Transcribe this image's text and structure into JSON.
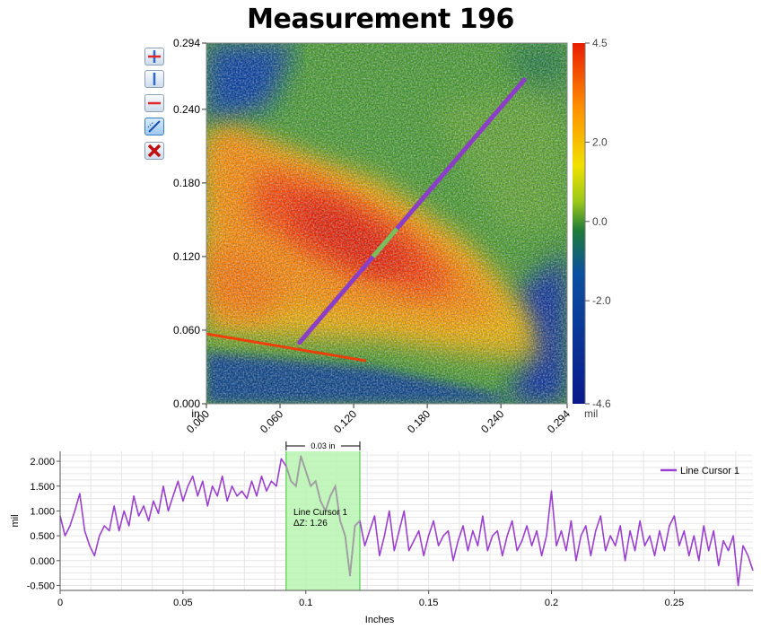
{
  "title": "Measurement 196",
  "toolbar": {
    "buttons": [
      {
        "name": "crosshair-cursor",
        "icon": "crosshair-icon",
        "active": false
      },
      {
        "name": "vertical-cursor",
        "icon": "vertical-line-icon",
        "active": false
      },
      {
        "name": "horizontal-cursor",
        "icon": "horizontal-line-icon",
        "active": false
      },
      {
        "name": "line-cursor",
        "icon": "diagonal-line-icon",
        "active": true
      },
      {
        "name": "delete-cursor",
        "icon": "red-x-icon",
        "active": false
      }
    ]
  },
  "chart_data": [
    {
      "type": "heatmap",
      "title": "Measurement 196",
      "axis_unit": "in",
      "x_ticks": [
        "0.000",
        "0.060",
        "0.120",
        "0.180",
        "0.240",
        "0.294"
      ],
      "y_ticks": [
        "0.294",
        "0.240",
        "0.180",
        "0.120",
        "0.060",
        "0.000"
      ],
      "xlim": [
        0,
        0.294
      ],
      "ylim": [
        0,
        0.294
      ],
      "colorbar": {
        "unit": "mil",
        "min": -4.6,
        "max": 4.5,
        "ticks": [
          "4.5",
          "2.0",
          "0.0",
          "-2.0",
          "-4.6"
        ],
        "tick_values": [
          4.5,
          2.0,
          0.0,
          -2.0,
          -4.6
        ],
        "colors": [
          "#0a1a8c",
          "#0c3fa0",
          "#1f7a3a",
          "#9ac81a",
          "#f0e000",
          "#ff9000",
          "#e81c00"
        ]
      },
      "line_cursor": {
        "start": [
          0.076,
          0.05
        ],
        "end": [
          0.259,
          0.264
        ],
        "color": "#8a3fc6",
        "highlight_color": "#7bbf5a"
      },
      "hot_band": {
        "from": [
          0.0,
          0.057
        ],
        "to": [
          0.13,
          0.035
        ]
      }
    },
    {
      "type": "line",
      "xlabel": "Inches",
      "ylabel": "mil",
      "xlim": [
        0,
        0.282
      ],
      "ylim": [
        -0.6,
        2.2
      ],
      "x_ticks": [
        "0",
        "0.05",
        "0.1",
        "0.15",
        "0.2",
        "0.25"
      ],
      "x_tick_values": [
        0,
        0.05,
        0.1,
        0.15,
        0.2,
        0.25
      ],
      "y_ticks": [
        "2.000",
        "1.500",
        "1.000",
        "0.500",
        "0.000",
        "-0.500"
      ],
      "y_tick_values": [
        2.0,
        1.5,
        1.0,
        0.5,
        0.0,
        -0.5
      ],
      "grid": true,
      "legend_position": "top-right",
      "series": [
        {
          "name": "Line Cursor 1",
          "color": "#9b3fd0",
          "highlight_color": "#a0a0a0",
          "x": [
            0,
            0.002,
            0.004,
            0.006,
            0.008,
            0.01,
            0.012,
            0.014,
            0.016,
            0.018,
            0.02,
            0.022,
            0.024,
            0.026,
            0.028,
            0.03,
            0.032,
            0.034,
            0.036,
            0.038,
            0.04,
            0.042,
            0.044,
            0.046,
            0.048,
            0.05,
            0.052,
            0.054,
            0.056,
            0.058,
            0.06,
            0.062,
            0.064,
            0.066,
            0.068,
            0.07,
            0.072,
            0.074,
            0.076,
            0.078,
            0.08,
            0.082,
            0.084,
            0.086,
            0.088,
            0.09,
            0.092,
            0.094,
            0.096,
            0.098,
            0.1,
            0.102,
            0.104,
            0.106,
            0.108,
            0.11,
            0.112,
            0.114,
            0.116,
            0.118,
            0.12,
            0.122,
            0.124,
            0.126,
            0.128,
            0.13,
            0.132,
            0.134,
            0.136,
            0.138,
            0.14,
            0.142,
            0.144,
            0.146,
            0.148,
            0.15,
            0.152,
            0.154,
            0.156,
            0.158,
            0.16,
            0.162,
            0.164,
            0.166,
            0.168,
            0.17,
            0.172,
            0.174,
            0.176,
            0.178,
            0.18,
            0.182,
            0.184,
            0.186,
            0.188,
            0.19,
            0.192,
            0.194,
            0.196,
            0.198,
            0.2,
            0.202,
            0.204,
            0.206,
            0.208,
            0.21,
            0.212,
            0.214,
            0.216,
            0.218,
            0.22,
            0.222,
            0.224,
            0.226,
            0.228,
            0.23,
            0.232,
            0.234,
            0.236,
            0.238,
            0.24,
            0.242,
            0.244,
            0.246,
            0.248,
            0.25,
            0.252,
            0.254,
            0.256,
            0.258,
            0.26,
            0.262,
            0.264,
            0.266,
            0.268,
            0.27,
            0.272,
            0.274,
            0.276,
            0.278,
            0.28,
            0.282
          ],
          "y": [
            0.9,
            0.5,
            0.7,
            1.0,
            1.35,
            0.6,
            0.3,
            0.1,
            0.5,
            0.7,
            0.6,
            1.1,
            0.6,
            1.0,
            0.7,
            1.3,
            0.9,
            1.1,
            0.8,
            1.2,
            0.95,
            1.5,
            1.0,
            1.3,
            1.6,
            1.2,
            1.5,
            1.7,
            1.3,
            1.6,
            1.1,
            1.5,
            1.3,
            1.7,
            1.2,
            1.5,
            1.3,
            1.4,
            1.25,
            1.6,
            1.3,
            1.7,
            1.4,
            1.6,
            1.5,
            2.05,
            1.9,
            1.6,
            1.5,
            2.1,
            1.8,
            1.5,
            1.6,
            1.2,
            1.0,
            1.3,
            1.5,
            0.8,
            0.5,
            -0.3,
            0.7,
            0.8,
            0.3,
            0.6,
            0.9,
            0.1,
            0.5,
            1.0,
            0.2,
            0.6,
            1.0,
            0.2,
            0.4,
            0.6,
            0.1,
            0.5,
            0.8,
            0.3,
            0.5,
            0.6,
            0.0,
            0.4,
            0.7,
            0.2,
            0.6,
            0.3,
            0.9,
            0.2,
            0.5,
            0.6,
            0.1,
            0.5,
            0.8,
            0.2,
            0.4,
            0.7,
            0.3,
            0.6,
            0.1,
            0.5,
            1.4,
            0.3,
            0.6,
            0.2,
            0.8,
            0.0,
            0.5,
            0.7,
            0.1,
            0.6,
            0.9,
            0.2,
            0.5,
            0.3,
            0.7,
            0.0,
            0.6,
            0.2,
            0.8,
            0.3,
            0.5,
            0.1,
            0.6,
            0.2,
            0.7,
            0.9,
            0.3,
            0.6,
            0.1,
            0.5,
            0.0,
            0.7,
            0.2,
            0.6,
            -0.1,
            0.4,
            0.2,
            0.5,
            -0.5,
            0.3,
            0.1,
            -0.2
          ]
        }
      ],
      "highlight_region": {
        "x_start": 0.092,
        "x_end": 0.122,
        "width_label": "0.03 in",
        "fill": "#b8f5b0",
        "border": "#6fd86a"
      },
      "annotation": {
        "label": "Line Cursor 1",
        "delta": "ΔZ: 1.26"
      }
    }
  ]
}
